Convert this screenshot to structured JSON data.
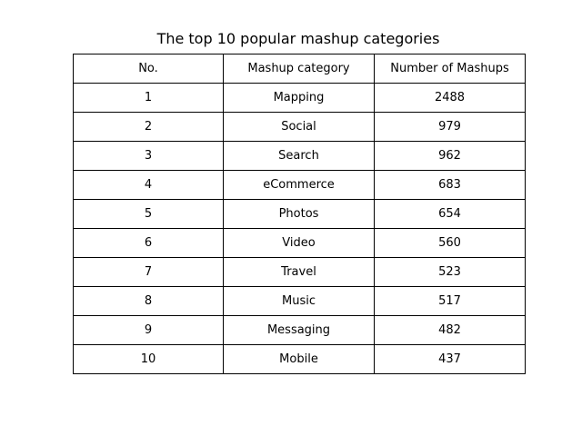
{
  "chart_data": {
    "type": "table",
    "title": "The top 10 popular mashup categories",
    "columns": [
      "No.",
      "Mashup category",
      "Number of Mashups"
    ],
    "rows": [
      [
        "1",
        "Mapping",
        "2488"
      ],
      [
        "2",
        "Social",
        "979"
      ],
      [
        "3",
        "Search",
        "962"
      ],
      [
        "4",
        "eCommerce",
        "683"
      ],
      [
        "5",
        "Photos",
        "654"
      ],
      [
        "6",
        "Video",
        "560"
      ],
      [
        "7",
        "Travel",
        "523"
      ],
      [
        "8",
        "Music",
        "517"
      ],
      [
        "9",
        "Messaging",
        "482"
      ],
      [
        "10",
        "Mobile",
        "437"
      ]
    ]
  }
}
